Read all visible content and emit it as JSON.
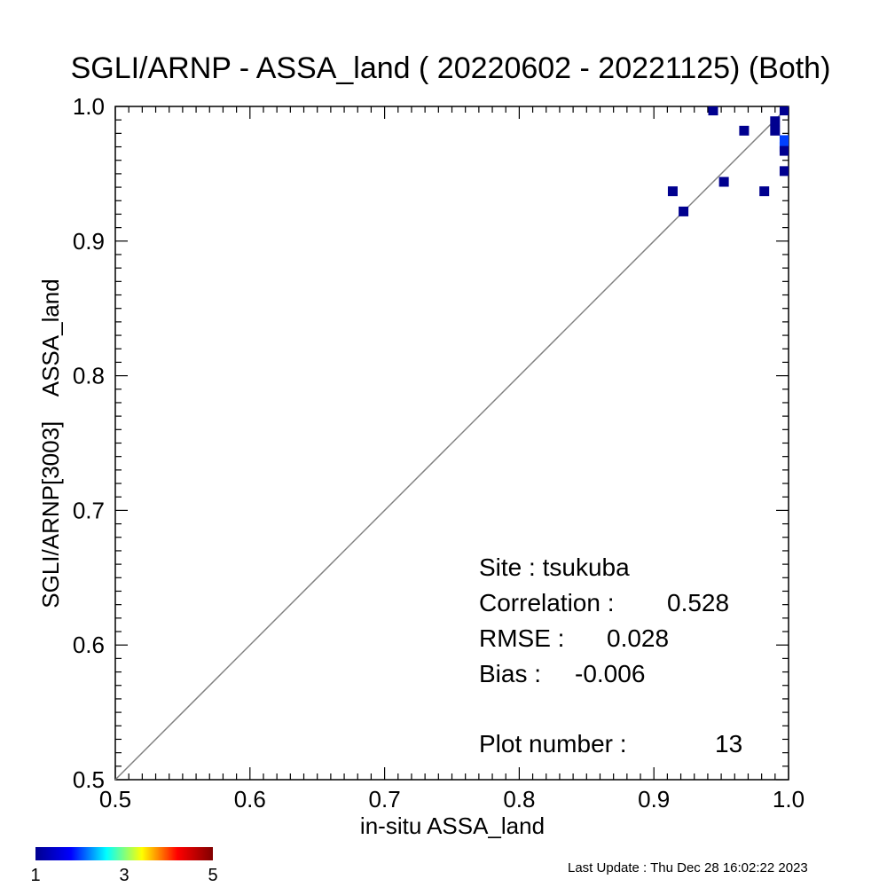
{
  "chart_data": {
    "type": "scatter",
    "title": "SGLI/ARNP - ASSA_land ( 20220602 - 20221125) (Both)",
    "xlabel": "in-situ ASSA_land",
    "ylabel": "SGLI/ARNP[3003]    ASSA_land",
    "xlim": [
      0.5,
      1.0
    ],
    "ylim": [
      0.5,
      1.0
    ],
    "xticks": [
      "0.5",
      "0.6",
      "0.7",
      "0.8",
      "0.9",
      "1.0"
    ],
    "yticks": [
      "0.5",
      "0.6",
      "0.7",
      "0.8",
      "0.9",
      "1.0"
    ],
    "one_to_one_line": true,
    "grid": false,
    "points": [
      {
        "x": 0.944,
        "y": 0.997,
        "count": 1
      },
      {
        "x": 0.967,
        "y": 0.982,
        "count": 1
      },
      {
        "x": 0.99,
        "y": 0.989,
        "count": 1
      },
      {
        "x": 0.99,
        "y": 0.982,
        "count": 1
      },
      {
        "x": 0.997,
        "y": 0.997,
        "count": 1
      },
      {
        "x": 0.997,
        "y": 0.975,
        "count": 2
      },
      {
        "x": 0.997,
        "y": 0.97,
        "count": 2
      },
      {
        "x": 0.997,
        "y": 0.967,
        "count": 1
      },
      {
        "x": 0.997,
        "y": 0.952,
        "count": 1
      },
      {
        "x": 0.914,
        "y": 0.937,
        "count": 1
      },
      {
        "x": 0.952,
        "y": 0.944,
        "count": 1
      },
      {
        "x": 0.982,
        "y": 0.937,
        "count": 1
      },
      {
        "x": 0.922,
        "y": 0.922,
        "count": 1
      }
    ],
    "annotations": {
      "site": "Site : tsukuba",
      "correlation_label": "Correlation :",
      "correlation_value": "0.528",
      "rmse_label": "RMSE :",
      "rmse_value": "0.028",
      "bias_label": "Bias :",
      "bias_value": "-0.006",
      "plot_number_label": "Plot number :",
      "plot_number_value": "13"
    },
    "colorbar": {
      "min": 1,
      "max": 5,
      "ticks": [
        "1",
        "3",
        "5"
      ],
      "colors": [
        "#00008f",
        "#0000ff",
        "#00ffff",
        "#ffff00",
        "#ff0000",
        "#800000"
      ]
    },
    "footer": "Last Update : Thu Dec 28 16:02:22 2023"
  }
}
